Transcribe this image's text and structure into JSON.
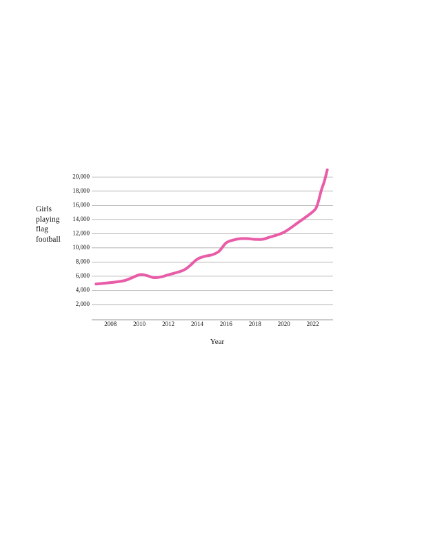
{
  "chart_data": {
    "type": "line",
    "x_label": "Year",
    "y_label": "Girls playing flag football",
    "x": [
      2007,
      2008,
      2009,
      2010,
      2010.5,
      2011,
      2011.5,
      2012,
      2013,
      2013.5,
      2014,
      2014.5,
      2015,
      2015.5,
      2016,
      2016.5,
      2017,
      2017.5,
      2018,
      2018.5,
      2019,
      2020,
      2021,
      2022,
      2022.3,
      2022.6,
      2022.8,
      2023
    ],
    "series": [
      {
        "color": "#e85ca8",
        "values": [
          4900,
          5100,
          5400,
          6200,
          6100,
          5800,
          5900,
          6200,
          6800,
          7500,
          8400,
          8800,
          9000,
          9500,
          10700,
          11100,
          11300,
          11300,
          11200,
          11200,
          11500,
          12200,
          13600,
          15100,
          16000,
          18200,
          19400,
          21000
        ]
      }
    ],
    "xlim": [
      2006.7,
      2023.4
    ],
    "xticks": [
      2008,
      2010,
      2012,
      2014,
      2016,
      2018,
      2020,
      2022
    ],
    "ylim": [
      0,
      21000
    ],
    "yticks": [
      {
        "value": 2000,
        "label": "2,000"
      },
      {
        "value": 4000,
        "label": "4,000"
      },
      {
        "value": 6000,
        "label": "6,000"
      },
      {
        "value": 8000,
        "label": "8,000"
      },
      {
        "value": 10000,
        "label": "10,000"
      },
      {
        "value": 12000,
        "label": "12,000"
      },
      {
        "value": 14000,
        "label": "14,000"
      },
      {
        "value": 16000,
        "label": "16,000"
      },
      {
        "value": 18000,
        "label": "18,000"
      },
      {
        "value": 20000,
        "label": "20,000"
      }
    ],
    "grid": true
  }
}
